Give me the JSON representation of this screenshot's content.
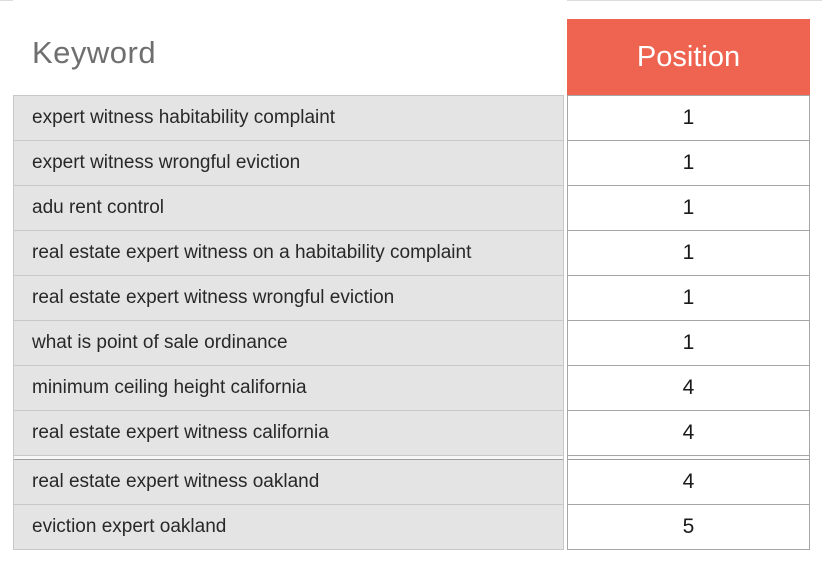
{
  "table": {
    "columns": [
      {
        "label": "Keyword"
      },
      {
        "label": "Position"
      }
    ],
    "rows": [
      {
        "keyword": "expert witness habitability complaint",
        "position": "1"
      },
      {
        "keyword": "expert witness wrongful eviction",
        "position": "1"
      },
      {
        "keyword": "adu rent control",
        "position": "1"
      },
      {
        "keyword": "real estate expert witness on a habitability complaint",
        "position": "1"
      },
      {
        "keyword": "real estate expert witness wrongful eviction",
        "position": "1"
      },
      {
        "keyword": "what is point of sale ordinance",
        "position": "1"
      },
      {
        "keyword": "minimum ceiling height california",
        "position": "4"
      },
      {
        "keyword": "real estate expert witness california",
        "position": "4"
      },
      {
        "keyword": "real estate expert witness oakland",
        "position": "4"
      },
      {
        "keyword": "eviction expert oakland",
        "position": "5"
      }
    ]
  },
  "colors": {
    "header_accent": "#ee6450",
    "header_text": "#ffffff",
    "keyword_header_text": "#6f6f6f",
    "keyword_cell_bg": "#e4e4e4",
    "keyword_border": "#c8c8c8",
    "position_border": "#a6a6a6",
    "row_text": "#282828"
  },
  "chart_data": {
    "type": "table",
    "columns": [
      "Keyword",
      "Position"
    ],
    "rows": [
      [
        "expert witness habitability complaint",
        1
      ],
      [
        "expert witness wrongful eviction",
        1
      ],
      [
        "adu rent control",
        1
      ],
      [
        "real estate expert witness on a habitability complaint",
        1
      ],
      [
        "real estate expert witness wrongful eviction",
        1
      ],
      [
        "what is point of sale ordinance",
        1
      ],
      [
        "minimum ceiling height california",
        4
      ],
      [
        "real estate expert witness california",
        4
      ],
      [
        "real estate expert witness oakland",
        4
      ],
      [
        "eviction expert oakland",
        5
      ]
    ]
  }
}
